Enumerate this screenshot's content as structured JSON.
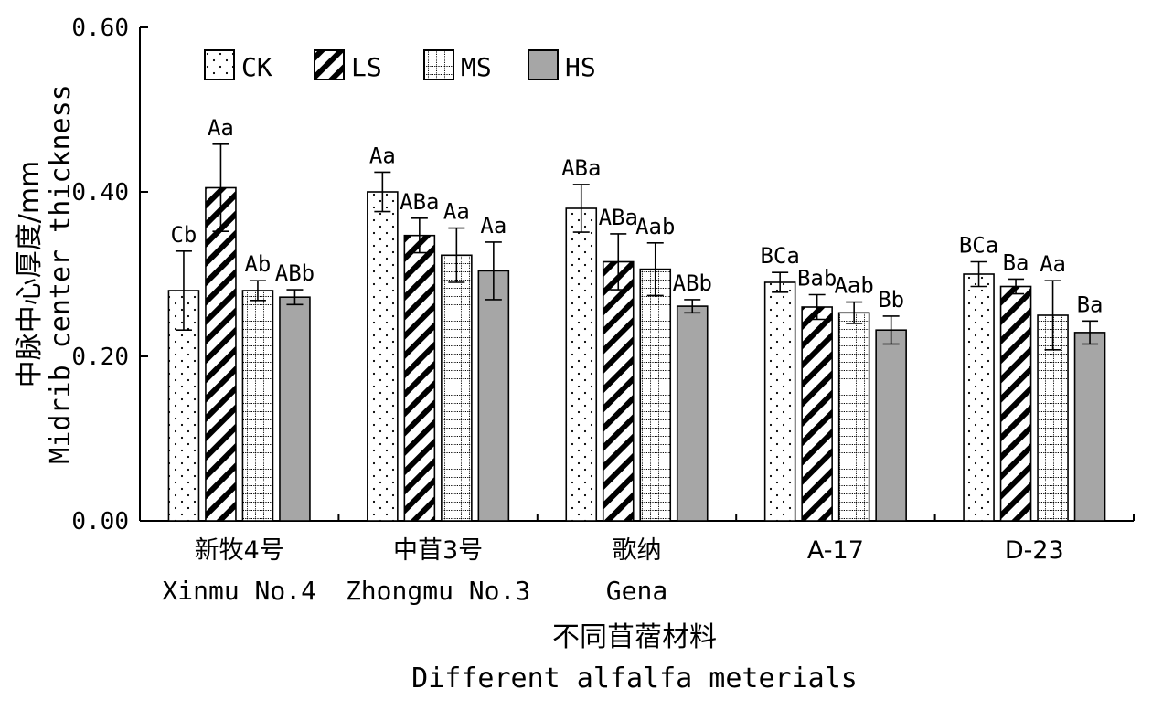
{
  "chart_data": {
    "type": "bar",
    "ylabel_cn": "中脉中心厚度/mm",
    "ylabel_en": "Midrib center thickness",
    "xlabel_cn": "不同苜蓿材料",
    "xlabel_en": "Different alfalfa meterials",
    "ylim": [
      0,
      0.6
    ],
    "yticks": [
      "0.00",
      "0.20",
      "0.40",
      "0.60"
    ],
    "categories": [
      {
        "cn": "新牧4号",
        "en": "Xinmu No.4"
      },
      {
        "cn": "中苜3号",
        "en": "Zhongmu No.3"
      },
      {
        "cn": "歌纳",
        "en": "Gena"
      },
      {
        "cn": "A-17",
        "en": ""
      },
      {
        "cn": "D-23",
        "en": ""
      }
    ],
    "series": [
      {
        "name": "CK",
        "pattern": "dots",
        "values": [
          0.28,
          0.4,
          0.38,
          0.29,
          0.3
        ],
        "errors": [
          0.048,
          0.024,
          0.029,
          0.012,
          0.015
        ],
        "labels": [
          "Cb",
          "Aa",
          "ABa",
          "BCa",
          "BCa"
        ]
      },
      {
        "name": "LS",
        "pattern": "diagonal",
        "values": [
          0.405,
          0.347,
          0.315,
          0.26,
          0.285
        ],
        "errors": [
          0.053,
          0.021,
          0.034,
          0.015,
          0.009
        ],
        "labels": [
          "Aa",
          "ABa",
          "ABa",
          "Bab",
          "Ba"
        ]
      },
      {
        "name": "MS",
        "pattern": "grid",
        "values": [
          0.28,
          0.323,
          0.306,
          0.253,
          0.25
        ],
        "errors": [
          0.012,
          0.033,
          0.032,
          0.013,
          0.042
        ],
        "labels": [
          "Ab",
          "Aa",
          "Aab",
          "Aab",
          "Aa"
        ]
      },
      {
        "name": "HS",
        "pattern": "solid-gray",
        "values": [
          0.272,
          0.304,
          0.261,
          0.232,
          0.229
        ],
        "errors": [
          0.009,
          0.035,
          0.008,
          0.017,
          0.014
        ],
        "labels": [
          "ABb",
          "Aa",
          "ABb",
          "Bb",
          "Ba"
        ]
      }
    ],
    "legend_position": "top-left",
    "grid": false,
    "colors": {
      "hs_fill": "#a6a6a6",
      "stroke": "#000000"
    }
  }
}
